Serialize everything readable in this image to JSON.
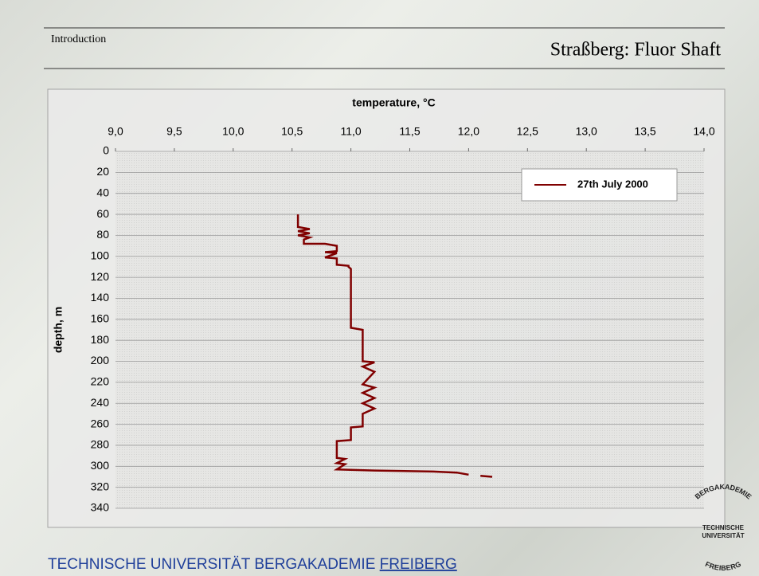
{
  "header": {
    "section": "Introduction",
    "title": "Straßberg: Fluor Shaft"
  },
  "chart_data": {
    "type": "line",
    "x_label": "temperature, °C",
    "y_label": "depth, m",
    "xlim": [
      9,
      14
    ],
    "xticks": [
      {
        "value": 9,
        "label": "9,0"
      },
      {
        "value": 9.5,
        "label": "9,5"
      },
      {
        "value": 10,
        "label": "10,0"
      },
      {
        "value": 10.5,
        "label": "10,5"
      },
      {
        "value": 11,
        "label": "11,0"
      },
      {
        "value": 11.5,
        "label": "11,5"
      },
      {
        "value": 12,
        "label": "12,0"
      },
      {
        "value": 12.5,
        "label": "12,5"
      },
      {
        "value": 13,
        "label": "13,0"
      },
      {
        "value": 13.5,
        "label": "13,5"
      },
      {
        "value": 14,
        "label": "14,0"
      }
    ],
    "ylim": [
      0,
      340
    ],
    "y_inverted": true,
    "yticks": [
      0,
      20,
      40,
      60,
      80,
      100,
      120,
      140,
      160,
      180,
      200,
      220,
      240,
      260,
      280,
      300,
      320,
      340
    ],
    "grid": true,
    "legend": "upper-right",
    "series": [
      {
        "name": "27th July 2000",
        "color": "#800000",
        "x": [
          10.55,
          10.55,
          10.65,
          10.55,
          10.65,
          10.55,
          10.65,
          10.6,
          10.6,
          10.78,
          10.88,
          10.88,
          10.78,
          10.88,
          10.78,
          10.88,
          10.88,
          10.98,
          10.98,
          11.0,
          11.0,
          11.1,
          11.1,
          11.2,
          11.1,
          11.2,
          11.1,
          11.2,
          11.1,
          11.2,
          11.1,
          11.2,
          11.1,
          11.1,
          11.0,
          11.0,
          10.88,
          10.88,
          10.95,
          10.88,
          10.95,
          10.88,
          11.2,
          11.7,
          11.9,
          12.0,
          null,
          12.1,
          12.2
        ],
        "values": [
          60,
          72,
          74,
          76,
          78,
          80,
          82,
          84,
          88,
          88,
          90,
          95,
          96,
          97,
          101,
          102,
          108,
          109,
          110,
          112,
          168,
          170,
          200,
          201,
          205,
          210,
          222,
          225,
          230,
          235,
          240,
          245,
          250,
          262,
          263,
          275,
          276,
          292,
          293,
          297,
          298,
          303,
          304,
          305,
          306,
          308,
          null,
          309,
          310
        ]
      }
    ]
  },
  "footer": {
    "text": "TECHNISCHE UNIVERSITÄT BERGAKADEMIE",
    "link": "FREIBERG"
  },
  "logo": {
    "top": "BERGAKADEMIE",
    "middle1": "TECHNISCHE",
    "middle2": "UNIVERSITÄT",
    "bottom": "FREIBERG"
  }
}
